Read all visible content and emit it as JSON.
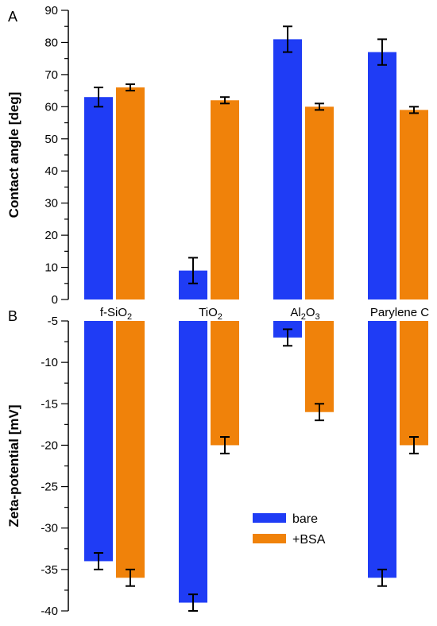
{
  "chart_data": [
    {
      "panel": "A",
      "type": "bar",
      "ylabel": "Contact angle [deg]",
      "ylim": [
        0,
        90
      ],
      "yticks": [
        0,
        10,
        20,
        30,
        40,
        50,
        60,
        70,
        80,
        90
      ],
      "categories": [
        {
          "base": "f-SiO",
          "sub": "2",
          "tail": ""
        },
        {
          "base": "TiO",
          "sub": "2",
          "tail": ""
        },
        {
          "base": "Al",
          "sub": "2",
          "tail": "O",
          "sub2": "3"
        },
        {
          "base": "Parylene C",
          "sub": "",
          "tail": ""
        }
      ],
      "series": [
        {
          "name": "bare",
          "values": [
            63,
            9,
            81,
            77
          ],
          "errors": [
            3,
            4,
            4,
            4
          ]
        },
        {
          "name": "+BSA",
          "values": [
            66,
            62,
            60,
            59
          ],
          "errors": [
            1,
            1,
            1,
            1
          ]
        }
      ]
    },
    {
      "panel": "B",
      "type": "bar",
      "ylabel": "Zeta-potential [mV]",
      "ylim": [
        -40,
        -5
      ],
      "yticks": [
        -5,
        -10,
        -15,
        -20,
        -25,
        -30,
        -35,
        -40
      ],
      "series": [
        {
          "name": "bare",
          "values": [
            -34,
            -39,
            -7,
            -36
          ],
          "errors": [
            1,
            1,
            1,
            1
          ]
        },
        {
          "name": "+BSA",
          "values": [
            -36,
            -20,
            -16,
            -20
          ],
          "errors": [
            1,
            1,
            1,
            1
          ]
        }
      ]
    }
  ],
  "colors": {
    "bare": "#1f3cf5",
    "bsa": "#f0820a",
    "axis": "#000000"
  },
  "legend": {
    "placement": "lower-right of panel B",
    "items": [
      "bare",
      "+BSA"
    ]
  }
}
